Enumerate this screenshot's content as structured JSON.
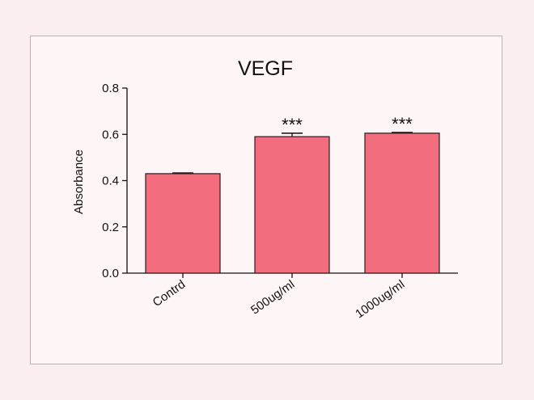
{
  "chart_data": {
    "type": "bar",
    "title": "VEGF",
    "xlabel": "",
    "ylabel": "Absorbance",
    "categories": [
      "Contrd",
      "500ug/ml",
      "1000ug/ml"
    ],
    "values": [
      0.43,
      0.59,
      0.605
    ],
    "errors": [
      0.003,
      0.015,
      0.003
    ],
    "significance": [
      "",
      "***",
      "***"
    ],
    "ylim": [
      0,
      0.8
    ],
    "yticks": [
      "0.0",
      "0.2",
      "0.4",
      "0.6",
      "0.8"
    ],
    "grid": false,
    "legend": "none",
    "colors": {
      "bar_fill": "#f26d7d",
      "bar_stroke": "#2b1a1d",
      "axis": "#111111"
    }
  }
}
